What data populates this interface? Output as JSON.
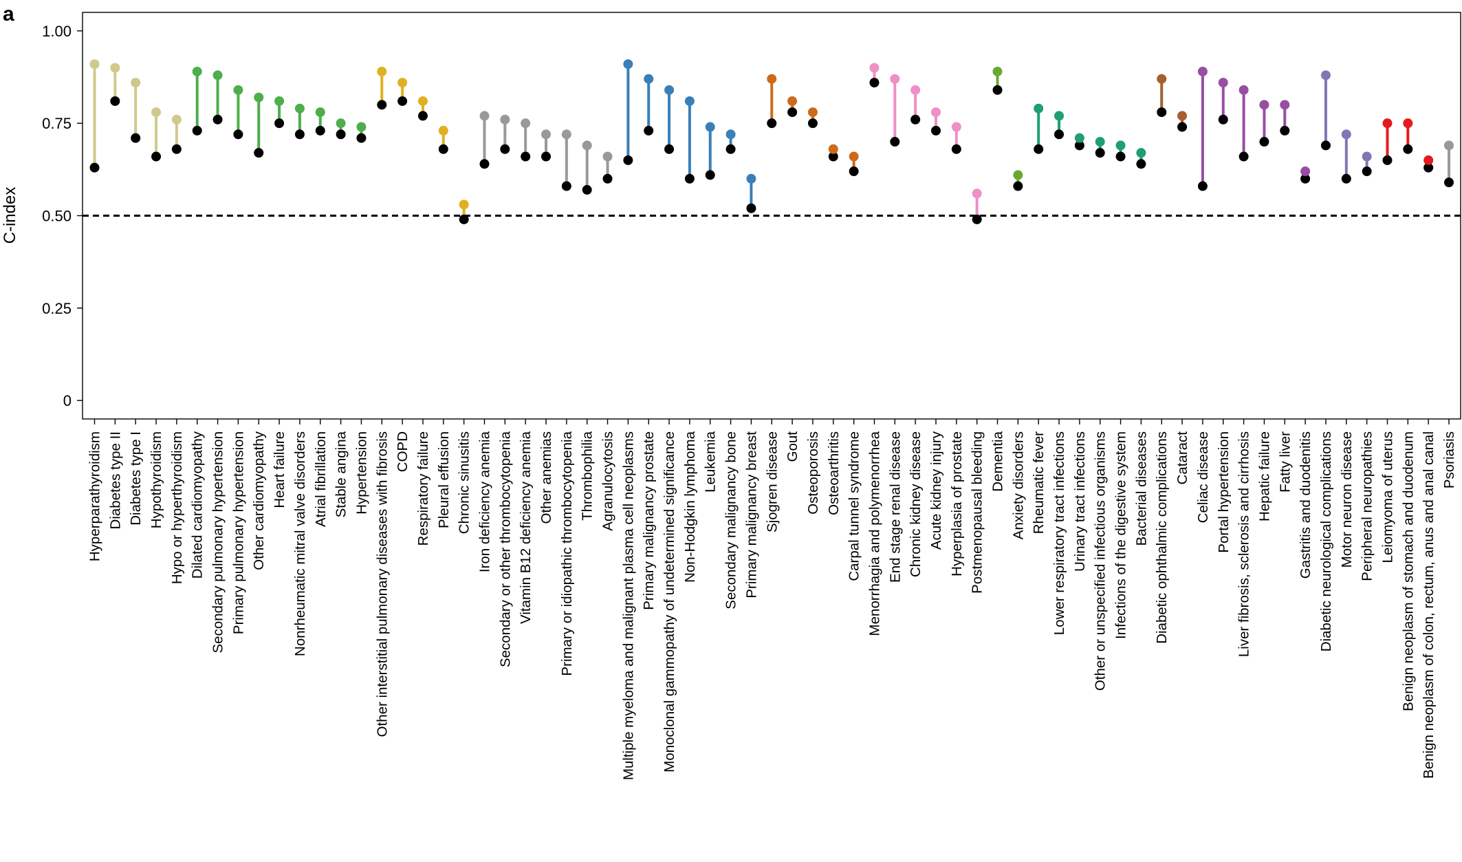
{
  "chart_data": {
    "type": "dumbbell",
    "panel_label": "a",
    "ylabel": "C-index",
    "ylim": [
      -0.05,
      1.05
    ],
    "yticks": [
      0,
      0.25,
      0.5,
      0.75,
      1.0
    ],
    "ytick_labels": [
      "0",
      "0.25",
      "0.50",
      "0.75",
      "1.00"
    ],
    "reference_line": 0.5,
    "baseline_color": "#000000",
    "categories": [
      {
        "label": "Hyperparathyroidism",
        "model": 0.91,
        "baseline": 0.63,
        "color": "#cfc98c"
      },
      {
        "label": "Diabetes type II",
        "model": 0.9,
        "baseline": 0.81,
        "color": "#cfc98c"
      },
      {
        "label": "Diabetes type I",
        "model": 0.86,
        "baseline": 0.71,
        "color": "#cfc98c"
      },
      {
        "label": "Hypothyroidism",
        "model": 0.78,
        "baseline": 0.66,
        "color": "#cfc98c"
      },
      {
        "label": "Hypo or hyperthyroidism",
        "model": 0.76,
        "baseline": 0.68,
        "color": "#cfc98c"
      },
      {
        "label": "Dilated cardiomyopathy",
        "model": 0.89,
        "baseline": 0.73,
        "color": "#4daf4a"
      },
      {
        "label": "Secondary pulmonary hypertension",
        "model": 0.88,
        "baseline": 0.76,
        "color": "#4daf4a"
      },
      {
        "label": "Primary pulmonary hypertension",
        "model": 0.84,
        "baseline": 0.72,
        "color": "#4daf4a"
      },
      {
        "label": "Other cardiomyopathy",
        "model": 0.82,
        "baseline": 0.67,
        "color": "#4daf4a"
      },
      {
        "label": "Heart failure",
        "model": 0.81,
        "baseline": 0.75,
        "color": "#4daf4a"
      },
      {
        "label": "Nonrheumatic mitral valve disorders",
        "model": 0.79,
        "baseline": 0.72,
        "color": "#4daf4a"
      },
      {
        "label": "Atrial fibrillation",
        "model": 0.78,
        "baseline": 0.73,
        "color": "#4daf4a"
      },
      {
        "label": "Stable angina",
        "model": 0.75,
        "baseline": 0.72,
        "color": "#4daf4a"
      },
      {
        "label": "Hypertension",
        "model": 0.74,
        "baseline": 0.71,
        "color": "#4daf4a"
      },
      {
        "label": "Other interstitial pulmonary diseases with fibrosis",
        "model": 0.89,
        "baseline": 0.8,
        "color": "#e0b020"
      },
      {
        "label": "COPD",
        "model": 0.86,
        "baseline": 0.81,
        "color": "#e0b020"
      },
      {
        "label": "Respiratory failure",
        "model": 0.81,
        "baseline": 0.77,
        "color": "#e0b020"
      },
      {
        "label": "Pleural effusion",
        "model": 0.73,
        "baseline": 0.68,
        "color": "#e0b020"
      },
      {
        "label": "Chronic sinusitis",
        "model": 0.53,
        "baseline": 0.49,
        "color": "#e0b020"
      },
      {
        "label": "Iron deficiency anemia",
        "model": 0.77,
        "baseline": 0.64,
        "color": "#999999"
      },
      {
        "label": "Secondary or other thrombocytopenia",
        "model": 0.76,
        "baseline": 0.68,
        "color": "#999999"
      },
      {
        "label": "Vitamin B12 deficiency anemia",
        "model": 0.75,
        "baseline": 0.66,
        "color": "#999999"
      },
      {
        "label": "Other anemias",
        "model": 0.72,
        "baseline": 0.66,
        "color": "#999999"
      },
      {
        "label": "Primary or idiopathic thrombocytopenia",
        "model": 0.72,
        "baseline": 0.58,
        "color": "#999999"
      },
      {
        "label": "Thrombophilia",
        "model": 0.69,
        "baseline": 0.57,
        "color": "#999999"
      },
      {
        "label": "Agranulocytosis",
        "model": 0.66,
        "baseline": 0.6,
        "color": "#999999"
      },
      {
        "label": "Multiple myeloma and malignant plasma cell neoplasms",
        "model": 0.91,
        "baseline": 0.65,
        "color": "#3a7fb8"
      },
      {
        "label": "Primary malignancy prostate",
        "model": 0.87,
        "baseline": 0.73,
        "color": "#3a7fb8"
      },
      {
        "label": "Monoclonal gammopathy of undetermined significance",
        "model": 0.84,
        "baseline": 0.68,
        "color": "#3a7fb8"
      },
      {
        "label": "Non-Hodgkin lymphoma",
        "model": 0.81,
        "baseline": 0.6,
        "color": "#3a7fb8"
      },
      {
        "label": "Leukemia",
        "model": 0.74,
        "baseline": 0.61,
        "color": "#3a7fb8"
      },
      {
        "label": "Secondary malignancy bone",
        "model": 0.72,
        "baseline": 0.68,
        "color": "#3a7fb8"
      },
      {
        "label": "Primary malignancy breast",
        "model": 0.6,
        "baseline": 0.52,
        "color": "#3a7fb8"
      },
      {
        "label": "Sjogren disease",
        "model": 0.87,
        "baseline": 0.75,
        "color": "#cc6b1c"
      },
      {
        "label": "Gout",
        "model": 0.81,
        "baseline": 0.78,
        "color": "#cc6b1c"
      },
      {
        "label": "Osteoporosis",
        "model": 0.78,
        "baseline": 0.75,
        "color": "#cc6b1c"
      },
      {
        "label": "Osteoarthritis",
        "model": 0.68,
        "baseline": 0.66,
        "color": "#cc6b1c"
      },
      {
        "label": "Carpal tunnel syndrome",
        "model": 0.66,
        "baseline": 0.62,
        "color": "#cc6b1c"
      },
      {
        "label": "Menorrhagia and polymenorrhea",
        "model": 0.9,
        "baseline": 0.86,
        "color": "#ee8fc6"
      },
      {
        "label": "End stage renal disease",
        "model": 0.87,
        "baseline": 0.7,
        "color": "#ee8fc6"
      },
      {
        "label": "Chronic kidney disease",
        "model": 0.84,
        "baseline": 0.76,
        "color": "#ee8fc6"
      },
      {
        "label": "Acute kidney injury",
        "model": 0.78,
        "baseline": 0.73,
        "color": "#ee8fc6"
      },
      {
        "label": "Hyperplasia of prostate",
        "model": 0.74,
        "baseline": 0.68,
        "color": "#ee8fc6"
      },
      {
        "label": "Postmenopausal bleeding",
        "model": 0.56,
        "baseline": 0.49,
        "color": "#ee8fc6"
      },
      {
        "label": "Dementia",
        "model": 0.89,
        "baseline": 0.84,
        "color": "#6aa833"
      },
      {
        "label": "Anxiety disorders",
        "model": 0.61,
        "baseline": 0.58,
        "color": "#6aa833"
      },
      {
        "label": "Rheumatic fever",
        "model": 0.79,
        "baseline": 0.68,
        "color": "#1f9e78"
      },
      {
        "label": "Lower respiratory tract infections",
        "model": 0.77,
        "baseline": 0.72,
        "color": "#1f9e78"
      },
      {
        "label": "Urinary tract infections",
        "model": 0.71,
        "baseline": 0.69,
        "color": "#1f9e78"
      },
      {
        "label": "Other or unspecified infectious organisms",
        "model": 0.7,
        "baseline": 0.67,
        "color": "#1f9e78"
      },
      {
        "label": "Infections of the digestive system",
        "model": 0.69,
        "baseline": 0.66,
        "color": "#1f9e78"
      },
      {
        "label": "Bacterial diseases",
        "model": 0.67,
        "baseline": 0.64,
        "color": "#1f9e78"
      },
      {
        "label": "Diabetic ophthalmic complications",
        "model": 0.87,
        "baseline": 0.78,
        "color": "#a65f2e"
      },
      {
        "label": "Cataract",
        "model": 0.77,
        "baseline": 0.74,
        "color": "#a65f2e"
      },
      {
        "label": "Celiac disease",
        "model": 0.89,
        "baseline": 0.58,
        "color": "#984ea3"
      },
      {
        "label": "Portal hypertension",
        "model": 0.86,
        "baseline": 0.76,
        "color": "#984ea3"
      },
      {
        "label": "Liver fibrosis, sclerosis and cirrhosis",
        "model": 0.84,
        "baseline": 0.66,
        "color": "#984ea3"
      },
      {
        "label": "Hepatic failure",
        "model": 0.8,
        "baseline": 0.7,
        "color": "#984ea3"
      },
      {
        "label": "Fatty liver",
        "model": 0.8,
        "baseline": 0.73,
        "color": "#984ea3"
      },
      {
        "label": "Gastritis and duodenitis",
        "model": 0.62,
        "baseline": 0.6,
        "color": "#984ea3"
      },
      {
        "label": "Diabetic neurological complications",
        "model": 0.88,
        "baseline": 0.69,
        "color": "#7f77b5"
      },
      {
        "label": "Motor neuron disease",
        "model": 0.72,
        "baseline": 0.6,
        "color": "#7f77b5"
      },
      {
        "label": "Peripheral neuropathies",
        "model": 0.66,
        "baseline": 0.62,
        "color": "#7f77b5"
      },
      {
        "label": "Leiomyoma of uterus",
        "model": 0.75,
        "baseline": 0.65,
        "color": "#e41a1c"
      },
      {
        "label": "Benign neoplasm of stomach and duodenum",
        "model": 0.75,
        "baseline": 0.68,
        "color": "#e41a1c"
      },
      {
        "label": "Benign neoplasm of colon, rectum, anus and anal canal",
        "model": 0.65,
        "baseline": 0.63,
        "color": "#e41a1c"
      },
      {
        "label": "Psoriasis",
        "model": 0.69,
        "baseline": 0.59,
        "color": "#999999"
      }
    ]
  }
}
